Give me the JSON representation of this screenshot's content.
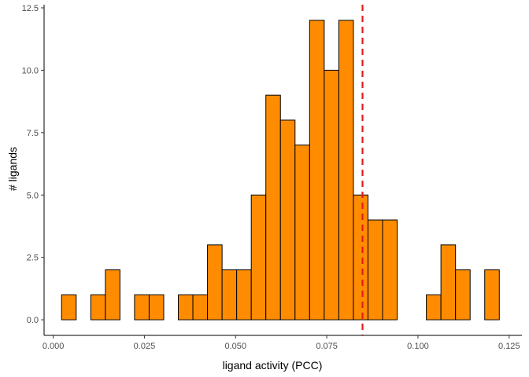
{
  "chart_data": {
    "type": "bar",
    "title": "",
    "xlabel": "ligand activity (PCC)",
    "ylabel": "# ligands",
    "xlim": [
      -0.0025,
      0.1285
    ],
    "ylim": [
      -0.625,
      12.625
    ],
    "x_ticks": [
      {
        "value": 0.0,
        "label": "0.000"
      },
      {
        "value": 0.025,
        "label": "0.025"
      },
      {
        "value": 0.05,
        "label": "0.050"
      },
      {
        "value": 0.075,
        "label": "0.075"
      },
      {
        "value": 0.1,
        "label": "0.100"
      },
      {
        "value": 0.125,
        "label": "0.125"
      }
    ],
    "y_ticks": [
      {
        "value": 0.0,
        "label": "0.0"
      },
      {
        "value": 2.5,
        "label": "2.5"
      },
      {
        "value": 5.0,
        "label": "5.0"
      },
      {
        "value": 7.5,
        "label": "7.5"
      },
      {
        "value": 10.0,
        "label": "10.0"
      },
      {
        "value": 12.5,
        "label": "12.5"
      }
    ],
    "bin_width": 0.004,
    "bins": [
      {
        "x0": 0.0023,
        "x1": 0.0063,
        "count": 1
      },
      {
        "x0": 0.0063,
        "x1": 0.0103,
        "count": 0
      },
      {
        "x0": 0.0103,
        "x1": 0.0143,
        "count": 1
      },
      {
        "x0": 0.0143,
        "x1": 0.0183,
        "count": 2
      },
      {
        "x0": 0.0183,
        "x1": 0.0223,
        "count": 0
      },
      {
        "x0": 0.0223,
        "x1": 0.0263,
        "count": 1
      },
      {
        "x0": 0.0263,
        "x1": 0.0303,
        "count": 1
      },
      {
        "x0": 0.0303,
        "x1": 0.0343,
        "count": 0
      },
      {
        "x0": 0.0343,
        "x1": 0.0383,
        "count": 1
      },
      {
        "x0": 0.0383,
        "x1": 0.0423,
        "count": 1
      },
      {
        "x0": 0.0423,
        "x1": 0.0463,
        "count": 3
      },
      {
        "x0": 0.0463,
        "x1": 0.0503,
        "count": 2
      },
      {
        "x0": 0.0503,
        "x1": 0.0543,
        "count": 2
      },
      {
        "x0": 0.0543,
        "x1": 0.0583,
        "count": 5
      },
      {
        "x0": 0.0583,
        "x1": 0.0623,
        "count": 9
      },
      {
        "x0": 0.0623,
        "x1": 0.0663,
        "count": 8
      },
      {
        "x0": 0.0663,
        "x1": 0.0703,
        "count": 7
      },
      {
        "x0": 0.0703,
        "x1": 0.0743,
        "count": 12
      },
      {
        "x0": 0.0743,
        "x1": 0.0783,
        "count": 10
      },
      {
        "x0": 0.0783,
        "x1": 0.0823,
        "count": 12
      },
      {
        "x0": 0.0823,
        "x1": 0.0863,
        "count": 5
      },
      {
        "x0": 0.0863,
        "x1": 0.0903,
        "count": 4
      },
      {
        "x0": 0.0903,
        "x1": 0.0943,
        "count": 4
      },
      {
        "x0": 0.0943,
        "x1": 0.0983,
        "count": 0
      },
      {
        "x0": 0.0983,
        "x1": 0.1023,
        "count": 0
      },
      {
        "x0": 0.1023,
        "x1": 0.1063,
        "count": 1
      },
      {
        "x0": 0.1063,
        "x1": 0.1103,
        "count": 3
      },
      {
        "x0": 0.1103,
        "x1": 0.1143,
        "count": 2
      },
      {
        "x0": 0.1143,
        "x1": 0.1183,
        "count": 0
      },
      {
        "x0": 0.1183,
        "x1": 0.1223,
        "count": 2
      }
    ],
    "reference_line": {
      "x": 0.0848,
      "style": "dashed",
      "color": "#e41a1c"
    },
    "bar_fill": "#ff8c00",
    "bar_stroke": "#000000",
    "grid": false,
    "legend": "none"
  }
}
